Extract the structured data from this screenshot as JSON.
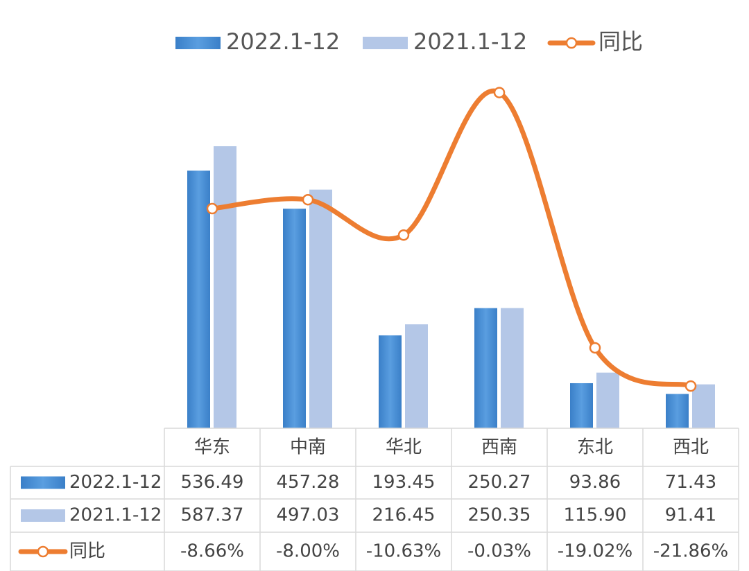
{
  "chart_data": {
    "type": "bar",
    "legend": "top",
    "data_table": true,
    "categories": [
      "华东",
      "中南",
      "华北",
      "西南",
      "东北",
      "西北"
    ],
    "series": [
      {
        "name": "2022.1-12",
        "color": "#4a8fd6",
        "values": [
          536.49,
          457.28,
          193.45,
          250.27,
          93.86,
          71.43
        ],
        "value_labels": [
          "536.49",
          "457.28",
          "193.45",
          "250.27",
          "93.86",
          "71.43"
        ]
      },
      {
        "name": "2021.1-12",
        "color": "#b4c7e7",
        "values": [
          587.37,
          497.03,
          216.45,
          250.35,
          115.9,
          91.41
        ],
        "value_labels": [
          "587.37",
          "497.03",
          "216.45",
          "250.35",
          "115.90",
          "91.41"
        ]
      },
      {
        "name": "同比",
        "type": "line",
        "axis": "y2",
        "color": "#ed7d31",
        "values": [
          -8.66,
          -8.0,
          -10.63,
          -0.03,
          -19.02,
          -21.86
        ],
        "value_labels": [
          "-8.66%",
          "-8.00%",
          "-10.63%",
          "-0.03%",
          "-19.02%",
          "-21.86%"
        ]
      }
    ],
    "ylim": [
      0,
      700
    ],
    "y2lim": [
      -25,
      0
    ]
  }
}
